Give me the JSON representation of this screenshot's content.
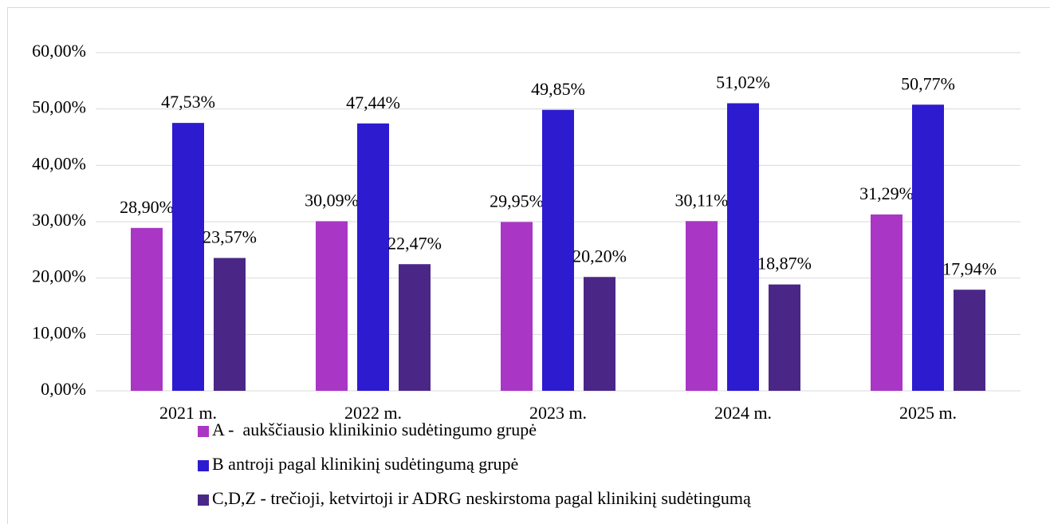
{
  "chart_data": {
    "type": "bar",
    "categories": [
      "2021 m.",
      "2022 m.",
      "2023 m.",
      "2024 m.",
      "2025 m."
    ],
    "series": [
      {
        "name": "A -  aukščiausio klinikinio sudėtingumo grupė",
        "color": "#a936c5",
        "values": [
          28.9,
          30.09,
          29.95,
          30.11,
          31.29
        ],
        "value_labels": [
          "28,90%",
          "30,09%",
          "29,95%",
          "30,11%",
          "31,29%"
        ]
      },
      {
        "name": "B antroji pagal klinikinį sudėtingumą grupė",
        "color": "#2d1bd0",
        "values": [
          47.53,
          47.44,
          49.85,
          51.02,
          50.77
        ],
        "value_labels": [
          "47,53%",
          "47,44%",
          "49,85%",
          "51,02%",
          "50,77%"
        ]
      },
      {
        "name": "C,D,Z - trečioji, ketvirtoji ir ADRG neskirstoma pagal klinikinį sudėtingumą",
        "color": "#4a2787",
        "values": [
          23.57,
          22.47,
          20.2,
          18.87,
          17.94
        ],
        "value_labels": [
          "23,57%",
          "22,47%",
          "20,20%",
          "18,87%",
          "17,94%"
        ]
      }
    ],
    "ylim": [
      0,
      60
    ],
    "yticks": [
      {
        "value": 0,
        "label": "0,00%"
      },
      {
        "value": 10,
        "label": "10,00%"
      },
      {
        "value": 20,
        "label": "20,00%"
      },
      {
        "value": 30,
        "label": "30,00%"
      },
      {
        "value": 40,
        "label": "40,00%"
      },
      {
        "value": 50,
        "label": "50,00%"
      },
      {
        "value": 60,
        "label": "60,00%"
      }
    ],
    "grid": true,
    "legend": "bottom"
  }
}
